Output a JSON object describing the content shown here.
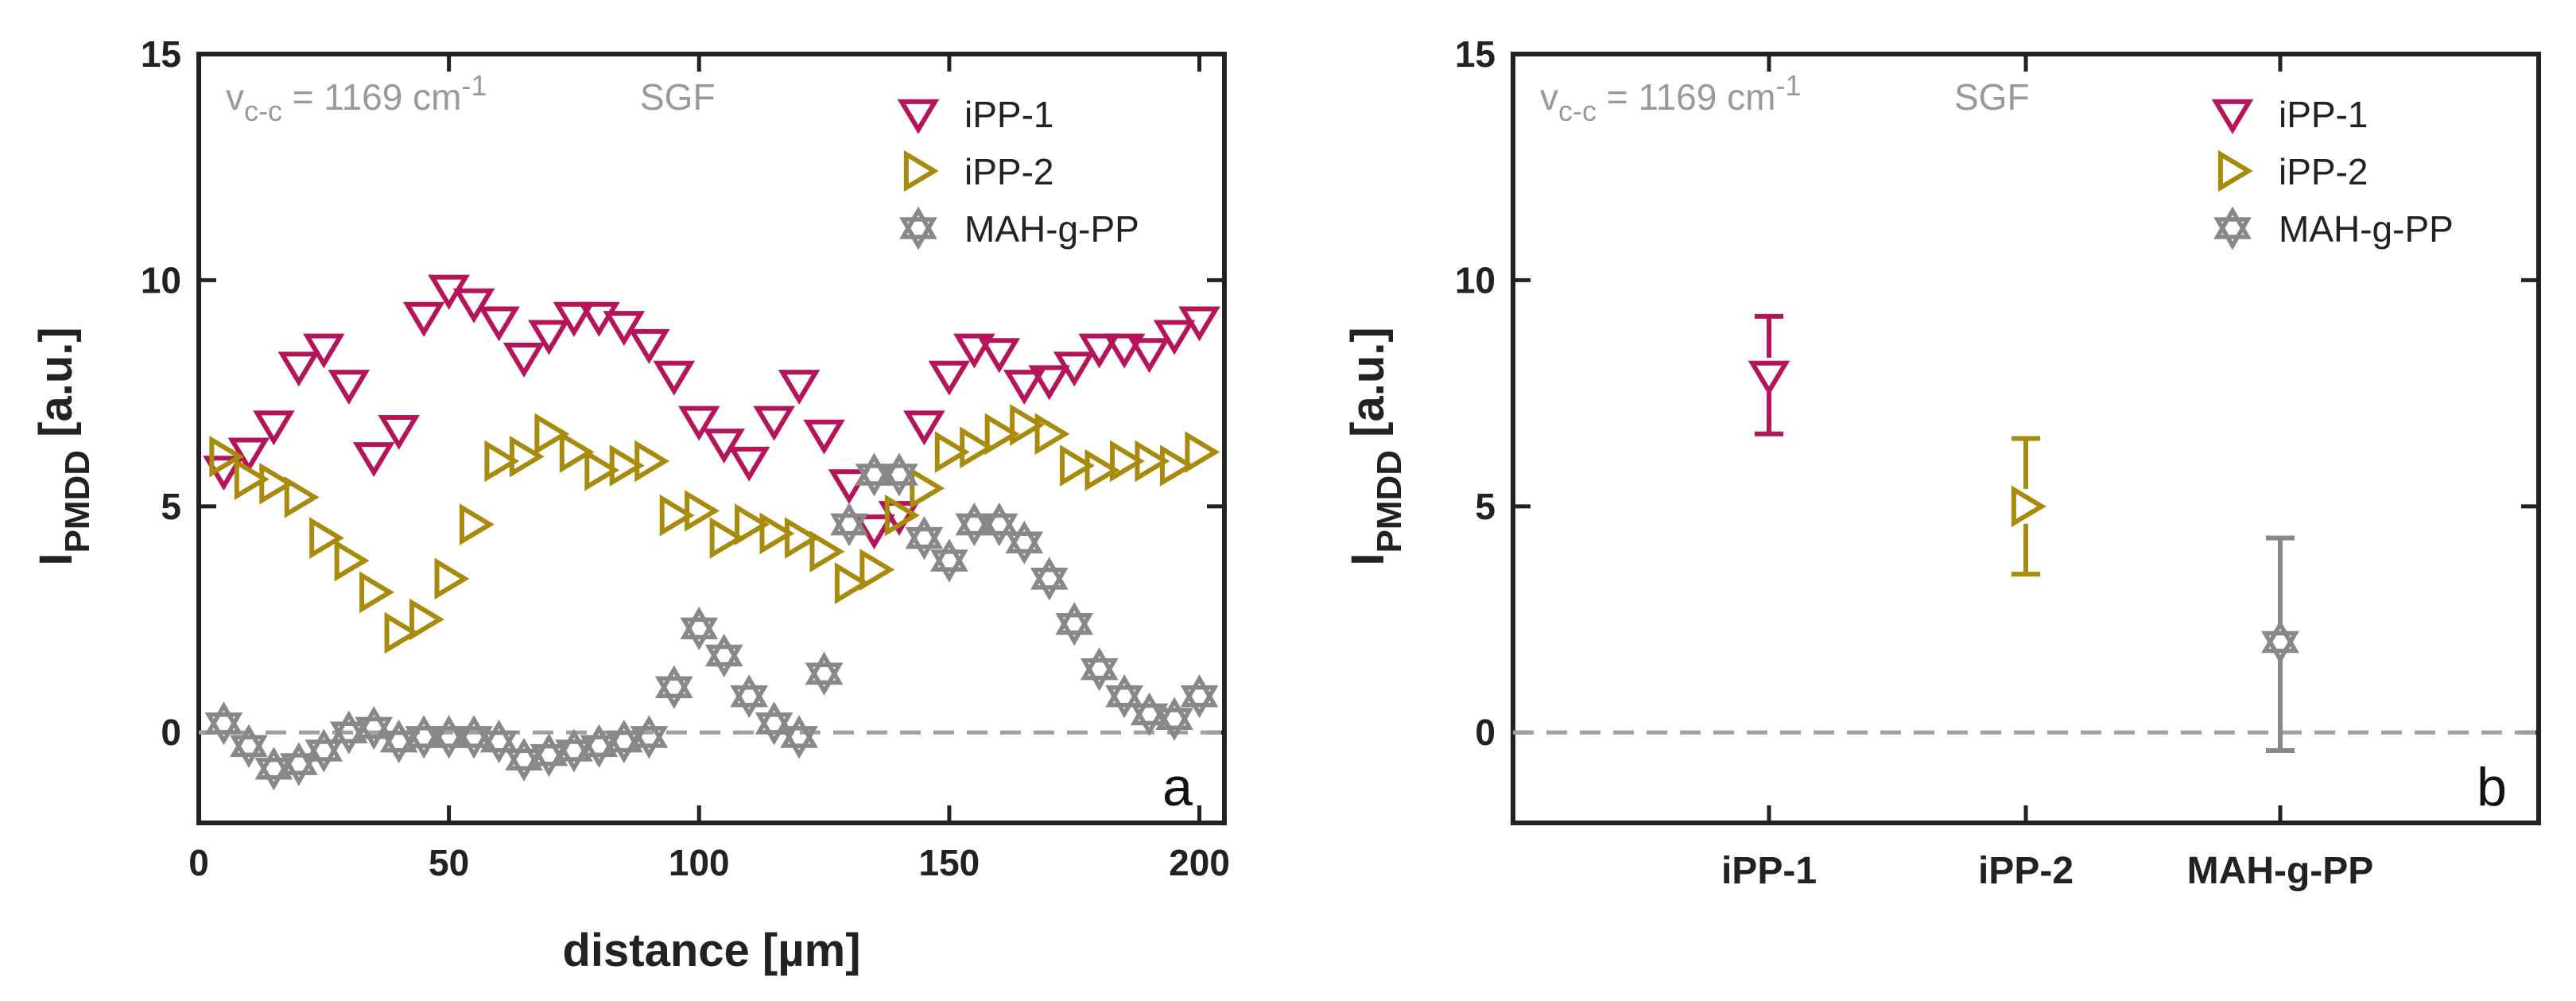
{
  "chart_data": [
    {
      "type": "scatter",
      "panel_label": "a",
      "xlabel": "distance [µm]",
      "ylabel_main": "I",
      "ylabel_sub": "PMDD",
      "ylabel_unit": "[a.u.]",
      "xlim": [
        0,
        205
      ],
      "ylim": [
        -2,
        15
      ],
      "xticks": [
        "0",
        "50",
        "100",
        "150",
        "200"
      ],
      "xtick_values": [
        0,
        50,
        100,
        150,
        200
      ],
      "yticks": [
        "0",
        "5",
        "10",
        "15"
      ],
      "ytick_values": [
        0,
        5,
        10,
        15
      ],
      "reference_line_y": 0,
      "annotation_v": "v",
      "annotation_sub": "c-c",
      "annotation_value": " = 1169 cm",
      "annotation_sup": "-1",
      "annotation_medium": "SGF",
      "legend_position": "top-right",
      "series": [
        {
          "name": "iPP-1",
          "color": "#b5135a",
          "marker": "triangle-down",
          "x": [
            5,
            10,
            15,
            20,
            25,
            30,
            35,
            40,
            45,
            50,
            55,
            60,
            65,
            70,
            75,
            80,
            85,
            90,
            95,
            100,
            105,
            110,
            115,
            120,
            125,
            130,
            135,
            140,
            145,
            150,
            155,
            160,
            165,
            170,
            175,
            180,
            185,
            190,
            195,
            200
          ],
          "y": [
            5.8,
            6.2,
            6.8,
            8.1,
            8.5,
            7.7,
            6.1,
            6.7,
            9.2,
            9.8,
            9.5,
            9.1,
            8.3,
            8.8,
            9.2,
            9.2,
            9.0,
            8.6,
            7.9,
            6.9,
            6.4,
            6.0,
            6.9,
            7.7,
            6.6,
            5.5,
            4.5,
            4.8,
            6.8,
            7.9,
            8.5,
            8.4,
            7.7,
            7.8,
            8.1,
            8.5,
            8.5,
            8.4,
            8.8,
            9.1
          ]
        },
        {
          "name": "iPP-2",
          "color": "#a88a0c",
          "marker": "triangle-right",
          "x": [
            5,
            10,
            15,
            20,
            25,
            30,
            35,
            40,
            45,
            50,
            55,
            60,
            65,
            70,
            75,
            80,
            85,
            90,
            95,
            100,
            105,
            110,
            115,
            120,
            125,
            130,
            135,
            140,
            145,
            150,
            155,
            160,
            165,
            170,
            175,
            180,
            185,
            190,
            195,
            200
          ],
          "y": [
            6.1,
            5.6,
            5.5,
            5.2,
            4.3,
            3.8,
            3.1,
            2.2,
            2.5,
            3.4,
            4.6,
            6.0,
            6.1,
            6.6,
            6.2,
            5.8,
            5.9,
            6.0,
            4.8,
            4.9,
            4.3,
            4.6,
            4.4,
            4.3,
            4.0,
            3.3,
            3.6,
            4.8,
            5.4,
            6.2,
            6.3,
            6.6,
            6.8,
            6.6,
            5.9,
            5.8,
            6.0,
            6.0,
            5.9,
            6.2
          ]
        },
        {
          "name": "MAH-g-PP",
          "color": "#888888",
          "marker": "hexagram",
          "x": [
            5,
            10,
            15,
            20,
            25,
            30,
            35,
            40,
            45,
            50,
            55,
            60,
            65,
            70,
            75,
            80,
            85,
            90,
            95,
            100,
            105,
            110,
            115,
            120,
            125,
            130,
            135,
            140,
            145,
            150,
            155,
            160,
            165,
            170,
            175,
            180,
            185,
            190,
            195,
            200
          ],
          "y": [
            0.2,
            -0.3,
            -0.8,
            -0.7,
            -0.4,
            0.0,
            0.1,
            -0.2,
            -0.1,
            -0.1,
            -0.1,
            -0.2,
            -0.6,
            -0.5,
            -0.4,
            -0.3,
            -0.2,
            -0.1,
            1.0,
            2.3,
            1.7,
            0.8,
            0.2,
            -0.1,
            1.3,
            4.6,
            5.7,
            5.7,
            4.3,
            3.8,
            4.6,
            4.6,
            4.2,
            3.4,
            2.4,
            1.4,
            0.8,
            0.4,
            0.3,
            0.8
          ]
        }
      ]
    },
    {
      "type": "errorbar",
      "panel_label": "b",
      "ylabel_main": "I",
      "ylabel_sub": "PMDD",
      "ylabel_unit": "[a.u.]",
      "ylim": [
        -2,
        15
      ],
      "yticks": [
        "0",
        "5",
        "10",
        "15"
      ],
      "ytick_values": [
        0,
        5,
        10,
        15
      ],
      "categories": [
        "iPP-1",
        "iPP-2",
        "MAH-g-PP"
      ],
      "reference_line_y": 0,
      "annotation_v": "v",
      "annotation_sub": "c-c",
      "annotation_value": " = 1169 cm",
      "annotation_sup": "-1",
      "annotation_medium": "SGF",
      "legend_position": "top-right",
      "series": [
        {
          "name": "iPP-1",
          "color": "#b5135a",
          "marker": "triangle-down",
          "mean": 7.9,
          "lower": 6.6,
          "upper": 9.2
        },
        {
          "name": "iPP-2",
          "color": "#a88a0c",
          "marker": "triangle-right",
          "mean": 5.0,
          "lower": 3.5,
          "upper": 6.5
        },
        {
          "name": "MAH-g-PP",
          "color": "#888888",
          "marker": "hexagram",
          "mean": 2.0,
          "lower": -0.4,
          "upper": 4.3
        }
      ]
    }
  ]
}
